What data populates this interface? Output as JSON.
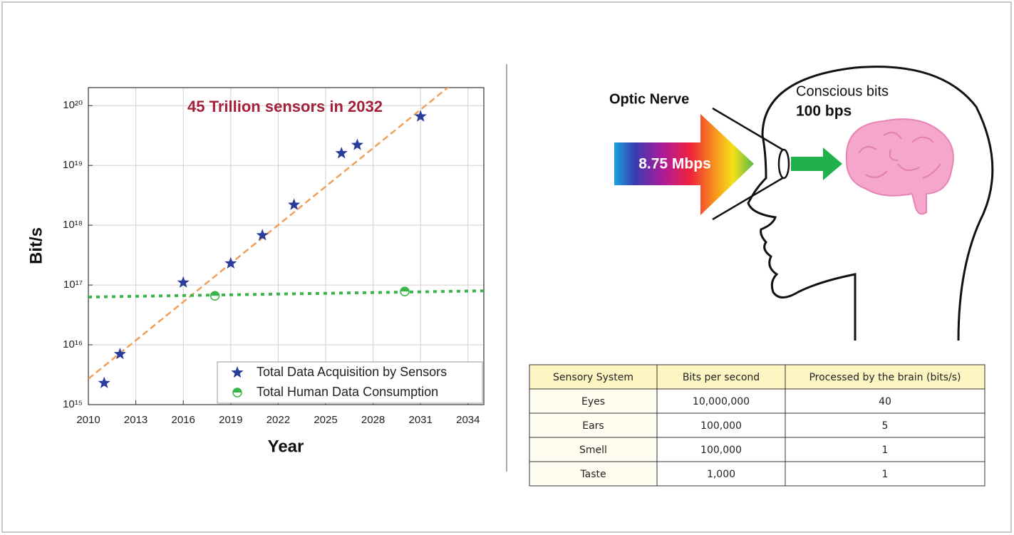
{
  "chart_data": {
    "type": "scatter",
    "ylog": true,
    "grid": true,
    "legend": "lower right",
    "annotation": "45 Trillion sensors in 2032",
    "annotation_color": "#a3213a",
    "x_label": "Year",
    "y_label": "Bit/s",
    "xlim": [
      2010,
      2035
    ],
    "xticks": [
      2010,
      2013,
      2016,
      2019,
      2022,
      2025,
      2028,
      2031,
      2034
    ],
    "ylim": [
      1000000000000000.0,
      2e+20
    ],
    "yticks": [
      {
        "value": 1000000000000000.0,
        "label": "10¹⁵"
      },
      {
        "value": 1e+16,
        "label": "10¹⁶"
      },
      {
        "value": 1e+17,
        "label": "10¹⁷"
      },
      {
        "value": 1e+18,
        "label": "10¹⁸"
      },
      {
        "value": 1e+19,
        "label": "10¹⁹"
      },
      {
        "value": 1e+20,
        "label": "10²⁰"
      }
    ],
    "series": [
      {
        "name": "Total Data Acquisition by Sensors",
        "color": "#2b3d9a",
        "marker": "star",
        "x": [
          2011,
          2012,
          2016,
          2019,
          2021,
          2023,
          2026,
          2027,
          2031
        ],
        "values": [
          2300000000000000.0,
          7000000000000000.0,
          1.1e+17,
          2.3e+17,
          6.8e+17,
          2.2e+18,
          1.6e+19,
          2.2e+19,
          6.6e+19
        ]
      },
      {
        "name": "Total Human Data Consumption",
        "color": "#3bb54a",
        "marker": "half-circle",
        "x": [
          2018,
          2030
        ],
        "values": [
          6.6e+16,
          7.8e+16
        ]
      }
    ],
    "trend_lines": [
      {
        "color": "#f0a05a",
        "dash": "dashed",
        "x": [
          2010,
          2033
        ],
        "values": [
          2700000000000000.0,
          2.3e+20
        ]
      },
      {
        "color": "#3bb54a",
        "dash": "dotted",
        "x": [
          2010,
          2035
        ],
        "values": [
          6.3e+16,
          8e+16
        ]
      }
    ]
  },
  "diagram": {
    "optic_nerve_label": "Optic Nerve",
    "input_rate": "8.75 Mbps",
    "conscious_label": "Conscious bits",
    "conscious_rate": "100 bps"
  },
  "table": {
    "header": [
      "Sensory System",
      "Bits per second",
      "Processed by the brain (bits/s)"
    ],
    "rows": [
      [
        "Eyes",
        "10,000,000",
        "40"
      ],
      [
        "Ears",
        "100,000",
        "5"
      ],
      [
        "Smell",
        "100,000",
        "1"
      ],
      [
        "Taste",
        "1,000",
        "1"
      ]
    ]
  }
}
